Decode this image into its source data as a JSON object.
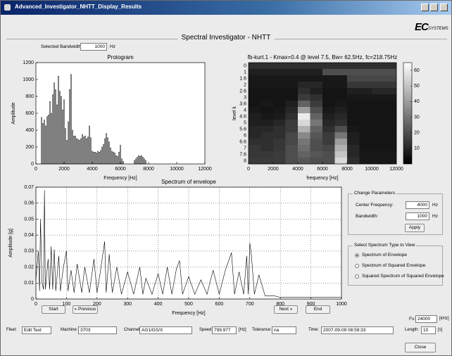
{
  "window": {
    "title": "Advanced_Investigator_NHTT_Display_Results",
    "logo": "EC",
    "logo_sub": "SYSTEMS"
  },
  "header": {
    "title": "Spectral Investigator - NHTT",
    "bandwidth": {
      "label": "Selected Bandwidth:",
      "value": "1000",
      "unit": "Hz"
    }
  },
  "chart_data": [
    {
      "type": "bar",
      "title": "Protogram",
      "x_label": "Frequency [Hz]",
      "y_label": "Amplitude",
      "color": "#ffffff",
      "edge_color": "#000000",
      "x": [
        400,
        500,
        600,
        700,
        800,
        900,
        1000,
        1100,
        1200,
        1300,
        1400,
        1500,
        1600,
        1700,
        1800,
        1900,
        2000,
        2100,
        2200,
        2300,
        2400,
        2500,
        2600,
        2700,
        2800,
        2900,
        3000,
        3100,
        3200,
        3300,
        3400,
        3500,
        3600,
        3700,
        3800,
        3900,
        4000,
        4100,
        4200,
        4300,
        4400,
        4500,
        4600,
        4700,
        4800,
        4900,
        5000,
        5100,
        5200,
        5300,
        5400,
        5500,
        5600,
        5700,
        5800,
        5900,
        6000,
        6100,
        6200,
        7000,
        7100,
        7200,
        7300,
        7400,
        7500,
        7600,
        7700,
        7800
      ],
      "values": [
        550,
        480,
        520,
        450,
        560,
        580,
        740,
        600,
        820,
        960,
        880,
        700,
        1040,
        860,
        800,
        640,
        760,
        420,
        280,
        500,
        880,
        1060,
        400,
        330,
        330,
        300,
        290,
        280,
        300,
        350,
        320,
        330,
        300,
        320,
        450,
        310,
        150,
        140,
        140,
        130,
        150,
        140,
        160,
        200,
        230,
        300,
        360,
        310,
        260,
        190,
        150,
        140,
        130,
        100,
        90,
        140,
        220,
        60,
        30,
        40,
        60,
        80,
        100,
        90,
        100,
        80,
        60,
        40
      ],
      "xlim": [
        0,
        12000
      ],
      "xticks": [
        0,
        2000,
        4000,
        6000,
        8000,
        10000,
        12000
      ],
      "ylim": [
        0,
        1200
      ],
      "yticks": [
        0,
        200,
        400,
        600,
        800,
        1000,
        1200
      ],
      "grid": false
    },
    {
      "type": "heatmap",
      "title": "fb-kurt.1 - Kmax=0.4 @ level 7.5, Bw= 62.5Hz, fc=218.75Hz",
      "x_label": "frequency [Hz]",
      "y_label": "level k",
      "categories": [
        "0",
        "1",
        "1.6",
        "2",
        "2.6",
        "3",
        "3.6",
        "4",
        "4.6",
        "5",
        "5.6",
        "6",
        "6.6",
        "7",
        "7.6",
        "8"
      ],
      "z": [
        [
          12,
          12,
          12,
          12,
          12,
          12,
          12,
          12,
          12,
          12,
          12,
          12
        ],
        [
          8,
          8,
          8,
          8,
          8,
          8,
          20,
          20,
          20,
          20,
          20,
          20
        ],
        [
          6,
          6,
          6,
          6,
          6,
          6,
          6,
          6,
          18,
          18,
          18,
          18
        ],
        [
          6,
          6,
          6,
          6,
          10,
          10,
          6,
          6,
          14,
          14,
          14,
          14
        ],
        [
          5,
          5,
          5,
          5,
          12,
          8,
          5,
          5,
          8,
          8,
          10,
          10
        ],
        [
          5,
          5,
          5,
          5,
          15,
          12,
          5,
          5,
          6,
          6,
          6,
          6
        ],
        [
          5,
          6,
          5,
          8,
          25,
          15,
          5,
          6,
          5,
          5,
          5,
          5
        ],
        [
          6,
          5,
          6,
          10,
          40,
          20,
          6,
          8,
          5,
          5,
          5,
          5
        ],
        [
          8,
          6,
          7,
          12,
          60,
          25,
          8,
          10,
          5,
          5,
          5,
          5
        ],
        [
          8,
          8,
          10,
          15,
          55,
          30,
          10,
          12,
          5,
          5,
          5,
          5
        ],
        [
          10,
          10,
          12,
          15,
          45,
          25,
          12,
          20,
          6,
          5,
          5,
          5
        ],
        [
          10,
          12,
          12,
          18,
          35,
          22,
          15,
          30,
          8,
          5,
          5,
          5
        ],
        [
          12,
          12,
          14,
          18,
          30,
          20,
          15,
          40,
          8,
          5,
          5,
          5
        ],
        [
          14,
          12,
          14,
          20,
          28,
          20,
          18,
          45,
          10,
          5,
          5,
          5
        ],
        [
          14,
          14,
          15,
          20,
          25,
          22,
          20,
          50,
          10,
          6,
          6,
          6
        ],
        [
          15,
          15,
          15,
          20,
          22,
          20,
          20,
          55,
          12,
          6,
          6,
          6
        ]
      ],
      "xlim": [
        0,
        12000
      ],
      "xticks": [
        0,
        2000,
        4000,
        6000,
        8000,
        10000,
        12000
      ],
      "colorbar_lim": [
        0,
        65
      ],
      "colorbar_ticks": [
        10,
        20,
        30,
        40,
        50,
        60
      ],
      "colormap": "gray"
    },
    {
      "type": "line",
      "title": "Spectrum of envelope",
      "x_label": "Frequency [Hz]",
      "y_label": "Amplitude [g]",
      "color": "#000000",
      "x": [
        0,
        8,
        12,
        15,
        20,
        25,
        28,
        31,
        40,
        45,
        50,
        55,
        60,
        65,
        75,
        80,
        90,
        100,
        105,
        115,
        125,
        135,
        150,
        160,
        175,
        190,
        200,
        210,
        225,
        230,
        240,
        250,
        265,
        280,
        300,
        320,
        340,
        350,
        360,
        380,
        400,
        415,
        430,
        445,
        460,
        470,
        480,
        500,
        520,
        540,
        560,
        580,
        600,
        620,
        640,
        650,
        665,
        680,
        690,
        695,
        700,
        705,
        715,
        730,
        750,
        780,
        800,
        850,
        900,
        950,
        1000
      ],
      "values": [
        0.012,
        0.03,
        0.005,
        0.05,
        0.01,
        0.006,
        0.068,
        0.006,
        0.025,
        0.006,
        0.033,
        0.006,
        0.031,
        0.005,
        0.027,
        0.005,
        0.02,
        0.03,
        0.005,
        0.018,
        0.004,
        0.022,
        0.004,
        0.02,
        0.004,
        0.025,
        0.004,
        0.016,
        0.036,
        0.004,
        0.028,
        0.004,
        0.02,
        0.003,
        0.017,
        0.003,
        0.02,
        0.003,
        0.013,
        0.003,
        0.016,
        0.003,
        0.02,
        0.003,
        0.019,
        0.024,
        0.003,
        0.014,
        0.003,
        0.012,
        0.003,
        0.018,
        0.003,
        0.018,
        0.029,
        0.003,
        0.017,
        0.003,
        0.027,
        0.003,
        0.035,
        0.028,
        0.003,
        0.015,
        0.002,
        0.002,
        0.001,
        0.001,
        0.001,
        0.001,
        0.001
      ],
      "xlim": [
        0,
        1000
      ],
      "xticks": [
        0,
        100,
        200,
        300,
        400,
        500,
        600,
        700,
        800,
        900,
        1000
      ],
      "ylim": [
        0,
        0.07
      ],
      "yticks": [
        0,
        0.01,
        0.02,
        0.03,
        0.04,
        0.05,
        0.06,
        0.07
      ],
      "grid": true
    }
  ],
  "navigation": {
    "start": "Start",
    "previous": "« Previous",
    "next": "Next »",
    "end": "End"
  },
  "change_parameters": {
    "title": "Change Parameters",
    "center_frequency": {
      "label": "Center Frequency:",
      "value": "4000",
      "unit": "Hz"
    },
    "bandwidth": {
      "label": "Bandwidth:",
      "value": "1000",
      "unit": "Hz"
    },
    "apply": "Apply"
  },
  "spectrum_type": {
    "title": "Select Spectrum Type to View",
    "options": [
      "Spectrum of Envelope",
      "Spectrum of Squared Envelope",
      "Squared Spectrum of Squared Envelope"
    ],
    "selected": 0
  },
  "fs": {
    "label": "Fs:",
    "value": "24000",
    "unit": "[kHz]"
  },
  "info": [
    {
      "label": "Fleet:",
      "value": "Edit Text"
    },
    {
      "label": "Machine:",
      "value": "3703"
    },
    {
      "label": "Channel:",
      "value": "AG1/GS/X"
    },
    {
      "label": "Speed:",
      "value": "799.977",
      "unit": "[Hz]"
    },
    {
      "label": "Tolerance:",
      "value": "na"
    },
    {
      "label": "Time:",
      "value": "2007-09-09 08:59:33"
    },
    {
      "label": "Length:",
      "value": "10",
      "unit": "[s]"
    }
  ],
  "close": "Close"
}
